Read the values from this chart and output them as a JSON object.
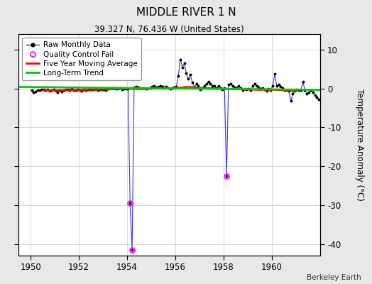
{
  "title": "MIDDLE RIVER 1 N",
  "subtitle": "39.327 N, 76.436 W (United States)",
  "ylabel": "Temperature Anomaly (°C)",
  "credit": "Berkeley Earth",
  "xlim": [
    1949.5,
    1962.0
  ],
  "ylim": [
    -43,
    14
  ],
  "yticks": [
    -40,
    -30,
    -20,
    -10,
    0,
    10
  ],
  "xticks": [
    1950,
    1952,
    1954,
    1956,
    1958,
    1960
  ],
  "background_color": "#e8e8e8",
  "plot_bg_color": "#ffffff",
  "raw_color": "#3333ff",
  "dot_color": "#000000",
  "ma_color": "#ff0000",
  "trend_color": "#00cc00",
  "qc_color": "#ff00ff",
  "raw_monthly_times": [
    1950.042,
    1950.125,
    1950.208,
    1950.292,
    1950.375,
    1950.458,
    1950.542,
    1950.625,
    1950.708,
    1950.792,
    1950.875,
    1950.958,
    1951.042,
    1951.125,
    1951.208,
    1951.292,
    1951.375,
    1951.458,
    1951.542,
    1951.625,
    1951.708,
    1951.792,
    1951.875,
    1951.958,
    1952.042,
    1952.125,
    1952.208,
    1952.292,
    1952.375,
    1952.458,
    1952.542,
    1952.625,
    1952.708,
    1952.792,
    1952.875,
    1952.958,
    1953.042,
    1953.125,
    1953.208,
    1953.292,
    1953.375,
    1953.458,
    1953.542,
    1953.625,
    1953.708,
    1953.792,
    1953.875,
    1953.958,
    1954.042,
    1954.125,
    1954.208,
    1954.292,
    1954.375,
    1954.458,
    1954.542,
    1954.625,
    1954.708,
    1954.792,
    1954.875,
    1954.958,
    1955.042,
    1955.125,
    1955.208,
    1955.292,
    1955.375,
    1955.458,
    1955.542,
    1955.625,
    1955.708,
    1955.792,
    1955.875,
    1955.958,
    1956.042,
    1956.125,
    1956.208,
    1956.292,
    1956.375,
    1956.458,
    1956.542,
    1956.625,
    1956.708,
    1956.792,
    1956.875,
    1956.958,
    1957.042,
    1957.125,
    1957.208,
    1957.292,
    1957.375,
    1957.458,
    1957.542,
    1957.625,
    1957.708,
    1957.792,
    1957.875,
    1957.958,
    1958.042,
    1958.125,
    1958.208,
    1958.292,
    1958.375,
    1958.458,
    1958.542,
    1958.625,
    1958.708,
    1958.792,
    1958.875,
    1958.958,
    1959.042,
    1959.125,
    1959.208,
    1959.292,
    1959.375,
    1959.458,
    1959.542,
    1959.625,
    1959.708,
    1959.792,
    1959.875,
    1959.958,
    1960.042,
    1960.125,
    1960.208,
    1960.292,
    1960.375,
    1960.458,
    1960.542,
    1960.625,
    1960.708,
    1960.792,
    1960.875,
    1960.958,
    1961.042,
    1961.125,
    1961.208,
    1961.292,
    1961.375,
    1961.458,
    1961.542,
    1961.625,
    1961.708,
    1961.792,
    1961.875,
    1961.958
  ],
  "raw_monthly_values": [
    -0.5,
    -1.0,
    -0.8,
    -0.5,
    -0.4,
    -0.3,
    -0.2,
    -0.4,
    -0.3,
    -0.7,
    -0.4,
    -0.3,
    -0.6,
    -1.0,
    -0.4,
    -0.8,
    -0.5,
    -0.3,
    -0.2,
    -0.4,
    -0.1,
    -0.5,
    -0.4,
    -0.2,
    -0.4,
    -0.6,
    -0.3,
    -0.5,
    -0.3,
    -0.2,
    -0.2,
    -0.3,
    -0.1,
    -0.5,
    -0.3,
    -0.2,
    -0.2,
    -0.4,
    -0.1,
    0.1,
    0.2,
    0.1,
    0.0,
    -0.1,
    0.1,
    -0.2,
    -0.1,
    -0.1,
    0.0,
    -29.5,
    -41.5,
    0.3,
    0.5,
    0.3,
    0.2,
    0.1,
    0.2,
    -0.1,
    0.1,
    0.2,
    0.4,
    0.6,
    0.3,
    0.5,
    0.6,
    0.4,
    0.2,
    0.4,
    0.2,
    0.0,
    0.2,
    0.3,
    0.5,
    3.2,
    7.5,
    5.5,
    6.5,
    4.0,
    2.5,
    3.5,
    1.5,
    0.3,
    1.2,
    0.6,
    -0.3,
    0.2,
    0.6,
    1.2,
    1.8,
    1.2,
    0.6,
    0.6,
    0.1,
    0.6,
    0.1,
    -0.3,
    0.1,
    -22.5,
    1.0,
    1.2,
    0.6,
    0.3,
    0.1,
    0.6,
    0.1,
    -0.4,
    0.0,
    -0.2,
    0.0,
    -0.4,
    0.6,
    1.2,
    0.6,
    0.3,
    0.0,
    0.2,
    -0.2,
    -0.7,
    -0.1,
    -0.4,
    0.6,
    3.8,
    0.6,
    1.0,
    0.4,
    0.1,
    -0.4,
    -0.4,
    -0.7,
    -3.2,
    -1.4,
    -0.7,
    -0.2,
    -0.4,
    -0.4,
    1.8,
    -0.4,
    -1.4,
    -0.9,
    -0.4,
    -0.9,
    -1.8,
    -2.3,
    -2.8
  ],
  "qc_fail_points": [
    [
      1954.125,
      -29.5
    ],
    [
      1954.208,
      -41.5
    ],
    [
      1958.125,
      -22.5
    ]
  ],
  "moving_avg_times": [
    1950.5,
    1951.0,
    1951.5,
    1952.0,
    1952.5,
    1953.0,
    1953.5,
    1954.0,
    1954.5,
    1955.0,
    1955.5,
    1956.0,
    1956.5,
    1957.0,
    1957.5,
    1958.0,
    1958.5,
    1959.0,
    1959.5,
    1960.0,
    1960.5,
    1961.0
  ],
  "moving_avg_values": [
    -0.45,
    -0.48,
    -0.42,
    -0.38,
    -0.35,
    -0.28,
    -0.15,
    -0.05,
    -0.15,
    -0.05,
    0.05,
    0.15,
    0.4,
    0.2,
    0.05,
    -0.05,
    -0.15,
    -0.25,
    -0.35,
    -0.3,
    -0.45,
    -0.7
  ],
  "trend_times": [
    1949.5,
    1962.0
  ],
  "trend_values": [
    0.4,
    -0.35
  ]
}
